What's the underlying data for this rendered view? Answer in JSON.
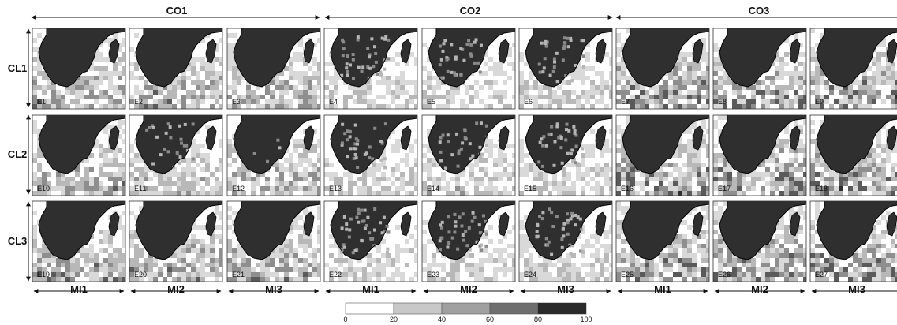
{
  "top_groups": [
    "CO1",
    "CO2",
    "CO3"
  ],
  "rows": [
    "CL1",
    "CL2",
    "CL3"
  ],
  "bottom_groups": [
    "MI1",
    "MI2",
    "MI3",
    "MI1",
    "MI2",
    "MI3",
    "MI1",
    "MI2",
    "MI3"
  ],
  "panels": [
    {
      "id": "E1",
      "cloud": 0.7
    },
    {
      "id": "E2",
      "cloud": 0.72
    },
    {
      "id": "E3",
      "cloud": 0.7
    },
    {
      "id": "E4",
      "cloud": 0.45
    },
    {
      "id": "E5",
      "cloud": 0.48
    },
    {
      "id": "E6",
      "cloud": 0.5
    },
    {
      "id": "E7",
      "cloud": 0.82
    },
    {
      "id": "E8",
      "cloud": 0.84
    },
    {
      "id": "E9",
      "cloud": 0.86
    },
    {
      "id": "E10",
      "cloud": 0.7
    },
    {
      "id": "E11",
      "cloud": 0.55
    },
    {
      "id": "E12",
      "cloud": 0.68
    },
    {
      "id": "E13",
      "cloud": 0.5
    },
    {
      "id": "E14",
      "cloud": 0.52
    },
    {
      "id": "E15",
      "cloud": 0.5
    },
    {
      "id": "E16",
      "cloud": 0.85
    },
    {
      "id": "E17",
      "cloud": 0.85
    },
    {
      "id": "E18",
      "cloud": 0.86
    },
    {
      "id": "E19",
      "cloud": 0.75
    },
    {
      "id": "E20",
      "cloud": 0.74
    },
    {
      "id": "E21",
      "cloud": 0.73
    },
    {
      "id": "E22",
      "cloud": 0.45
    },
    {
      "id": "E23",
      "cloud": 0.46
    },
    {
      "id": "E24",
      "cloud": 0.45
    },
    {
      "id": "E25",
      "cloud": 0.82
    },
    {
      "id": "E26",
      "cloud": 0.84
    },
    {
      "id": "E27",
      "cloud": 0.84
    }
  ],
  "colorbar": {
    "ticks": [
      "0",
      "20",
      "40",
      "60",
      "80",
      "100"
    ],
    "colors": [
      "#ffffff",
      "#c8c8c8",
      "#a0a0a0",
      "#6e6e6e",
      "#4a4a4a",
      "#2a2a2a"
    ]
  }
}
